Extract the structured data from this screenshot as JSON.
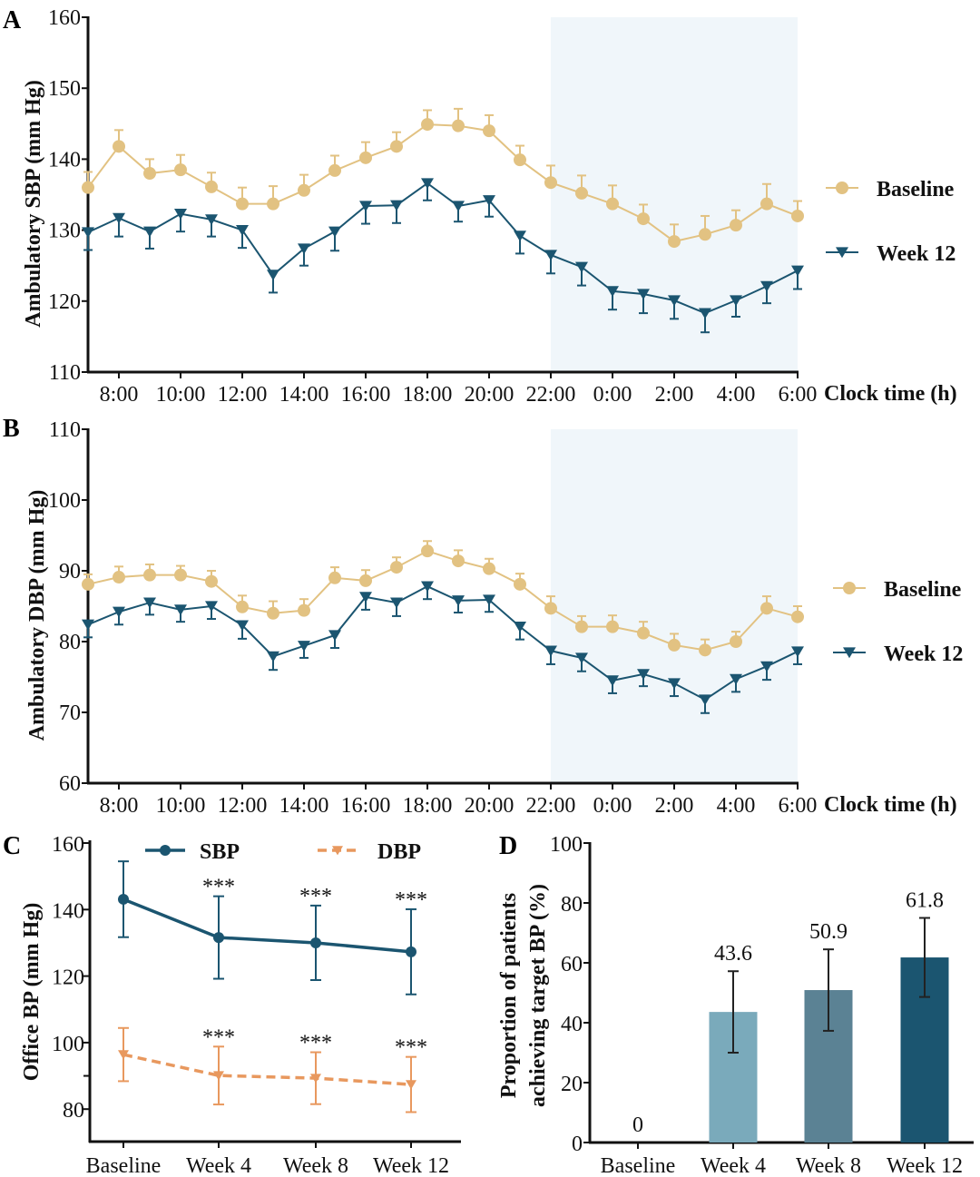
{
  "panel_labels": [
    "A",
    "B",
    "C",
    "D"
  ],
  "colors": {
    "baseline": "#e2c282",
    "week12": "#1b5570",
    "night_shade": "#f0f6fa",
    "sbp": "#1b5570",
    "dbp": "#e8985e",
    "bar_week4": "#7aaabb",
    "bar_week8": "#5b8294",
    "bar_week12": "#1b5570"
  },
  "chart_data": [
    {
      "panel": "A",
      "type": "line",
      "ylabel": "Ambulatory SBP (mm Hg)",
      "xlabel": "Clock time (h)",
      "ylim": [
        110,
        160
      ],
      "yticks": [
        110,
        120,
        130,
        140,
        150,
        160
      ],
      "x": [
        "7:00",
        "8:00",
        "9:00",
        "10:00",
        "11:00",
        "12:00",
        "13:00",
        "14:00",
        "15:00",
        "16:00",
        "17:00",
        "18:00",
        "19:00",
        "20:00",
        "21:00",
        "22:00",
        "23:00",
        "0:00",
        "1:00",
        "2:00",
        "3:00",
        "4:00",
        "5:00",
        "6:00"
      ],
      "xtick_labels": [
        "8:00",
        "10:00",
        "12:00",
        "14:00",
        "16:00",
        "18:00",
        "20:00",
        "22:00",
        "0:00",
        "2:00",
        "4:00",
        "6:00"
      ],
      "shaded_range": [
        "22:00",
        "6:00"
      ],
      "legend_position": "right",
      "series": [
        {
          "name": "Baseline",
          "marker": "circle",
          "error_direction": "up",
          "values": [
            136.0,
            141.8,
            138.0,
            138.5,
            136.1,
            133.7,
            133.7,
            135.6,
            138.4,
            140.2,
            141.8,
            144.9,
            144.7,
            144.0,
            139.9,
            136.7,
            135.2,
            133.7,
            131.6,
            128.4,
            129.4,
            130.7,
            133.7,
            132.0
          ],
          "errors": [
            2.2,
            2.3,
            2.0,
            2.1,
            2.0,
            2.3,
            2.5,
            2.2,
            2.1,
            2.2,
            2.0,
            2.0,
            2.4,
            2.2,
            2.0,
            2.4,
            2.5,
            2.6,
            2.0,
            2.4,
            2.6,
            2.1,
            2.8,
            2.1
          ]
        },
        {
          "name": "Week 12",
          "marker": "triangle-down",
          "error_direction": "down",
          "values": [
            129.7,
            131.7,
            129.8,
            132.3,
            131.5,
            130.0,
            123.7,
            127.4,
            129.8,
            133.4,
            133.5,
            136.6,
            133.4,
            134.2,
            129.2,
            126.5,
            124.8,
            121.4,
            121.0,
            120.1,
            118.3,
            120.1,
            122.1,
            124.3
          ],
          "errors": [
            2.5,
            2.6,
            2.4,
            2.5,
            2.4,
            2.5,
            2.5,
            2.4,
            2.7,
            2.5,
            2.5,
            2.4,
            2.2,
            2.3,
            2.5,
            2.6,
            2.6,
            2.6,
            2.7,
            2.6,
            2.7,
            2.3,
            2.4,
            2.6
          ]
        }
      ]
    },
    {
      "panel": "B",
      "type": "line",
      "ylabel": "Ambulatory DBP (mm Hg)",
      "xlabel": "Clock time (h)",
      "ylim": [
        60,
        110
      ],
      "yticks": [
        60,
        70,
        80,
        90,
        100,
        110
      ],
      "x": [
        "7:00",
        "8:00",
        "9:00",
        "10:00",
        "11:00",
        "12:00",
        "13:00",
        "14:00",
        "15:00",
        "16:00",
        "17:00",
        "18:00",
        "19:00",
        "20:00",
        "21:00",
        "22:00",
        "23:00",
        "0:00",
        "1:00",
        "2:00",
        "3:00",
        "4:00",
        "5:00",
        "6:00"
      ],
      "xtick_labels": [
        "8:00",
        "10:00",
        "12:00",
        "14:00",
        "16:00",
        "18:00",
        "20:00",
        "22:00",
        "0:00",
        "2:00",
        "4:00",
        "6:00"
      ],
      "shaded_range": [
        "22:00",
        "6:00"
      ],
      "legend_position": "right",
      "series": [
        {
          "name": "Baseline",
          "marker": "circle",
          "error_direction": "up",
          "values": [
            88.1,
            89.1,
            89.4,
            89.4,
            88.5,
            84.9,
            84.0,
            84.4,
            89.0,
            88.6,
            90.5,
            92.8,
            91.4,
            90.3,
            88.1,
            84.7,
            82.1,
            82.1,
            81.2,
            79.5,
            78.8,
            80.0,
            84.7,
            83.5
          ],
          "errors": [
            1.4,
            1.5,
            1.5,
            1.3,
            1.5,
            1.6,
            1.7,
            1.6,
            1.5,
            1.5,
            1.4,
            1.4,
            1.5,
            1.4,
            1.5,
            1.7,
            1.5,
            1.6,
            1.6,
            1.6,
            1.5,
            1.4,
            1.7,
            1.5
          ]
        },
        {
          "name": "Week 12",
          "marker": "triangle-down",
          "error_direction": "down",
          "values": [
            82.4,
            84.2,
            85.5,
            84.5,
            85.0,
            82.3,
            77.9,
            79.4,
            80.9,
            86.3,
            85.5,
            87.8,
            85.8,
            85.9,
            82.1,
            78.7,
            77.7,
            74.5,
            75.4,
            74.1,
            71.8,
            74.7,
            76.5,
            78.6
          ],
          "errors": [
            1.8,
            1.8,
            1.7,
            1.7,
            1.8,
            1.9,
            1.9,
            1.7,
            1.8,
            1.8,
            1.9,
            1.8,
            1.7,
            1.7,
            1.8,
            1.9,
            1.9,
            1.8,
            1.7,
            1.8,
            1.9,
            1.8,
            1.9,
            1.8
          ]
        }
      ]
    },
    {
      "panel": "C",
      "type": "line",
      "ylabel": "Office BP (mm Hg)",
      "ylim": [
        70,
        160
      ],
      "yticks": [
        80,
        100,
        120,
        140,
        160
      ],
      "categories": [
        "Baseline",
        "Week 4",
        "Week 8",
        "Week 12"
      ],
      "legend_position": "top",
      "significance": [
        "",
        "***",
        "***",
        "***"
      ],
      "series": [
        {
          "name": "SBP",
          "marker": "circle",
          "line_style": "solid",
          "values": [
            143.1,
            131.6,
            130.0,
            127.3
          ],
          "errors": [
            11.4,
            12.4,
            11.2,
            12.8
          ]
        },
        {
          "name": "DBP",
          "marker": "triangle-down",
          "line_style": "dashed",
          "values": [
            96.4,
            90.1,
            89.3,
            87.4
          ],
          "errors": [
            8.0,
            8.7,
            7.8,
            8.3
          ]
        }
      ]
    },
    {
      "panel": "D",
      "type": "bar",
      "ylabel_lines": [
        "Proportion of patients",
        "achieving target BP (%)"
      ],
      "ylim": [
        0,
        100
      ],
      "yticks": [
        0,
        20,
        40,
        60,
        80,
        100
      ],
      "categories": [
        "Baseline",
        "Week 4",
        "Week 8",
        "Week 12"
      ],
      "values": [
        0,
        43.6,
        50.9,
        61.8
      ],
      "value_labels": [
        "0",
        "43.6",
        "50.9",
        "61.8"
      ],
      "errors": [
        0,
        13.6,
        13.6,
        13.2
      ]
    }
  ]
}
